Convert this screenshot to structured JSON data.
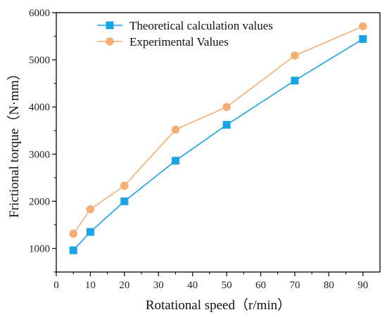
{
  "chart_data": {
    "type": "line",
    "title": "",
    "xlabel": "Rotational speed（r/min）",
    "ylabel": "Frictional torque（N·mm）",
    "xlim": [
      0,
      95
    ],
    "ylim": [
      500,
      6000
    ],
    "xticks": [
      0,
      10,
      20,
      30,
      40,
      50,
      60,
      70,
      80,
      90
    ],
    "yticks": [
      1000,
      2000,
      3000,
      4000,
      5000,
      6000
    ],
    "grid": false,
    "legend_position": "top-left",
    "series": [
      {
        "name": "Theoretical calculation values",
        "color": "#1aa3e8",
        "marker": "square",
        "x": [
          5,
          10,
          20,
          35,
          50,
          70,
          90
        ],
        "y": [
          960,
          1350,
          2000,
          2860,
          3620,
          4560,
          5440
        ]
      },
      {
        "name": "Experimental Values",
        "color": "#f5ae74",
        "marker": "circle",
        "x": [
          5,
          10,
          20,
          35,
          50,
          70,
          90
        ],
        "y": [
          1310,
          1830,
          2330,
          3520,
          4000,
          5090,
          5710
        ]
      }
    ]
  }
}
